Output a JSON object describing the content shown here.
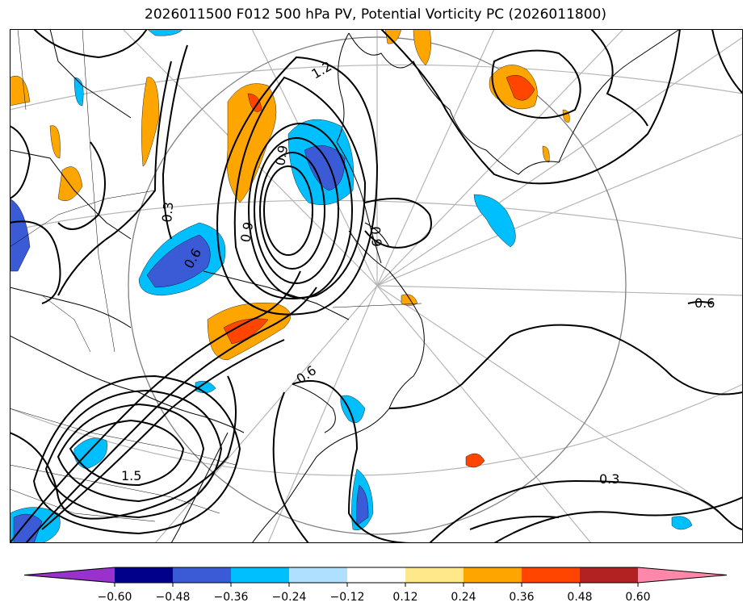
{
  "title": "2026011500 F012 500 hPa PV, Potential Vorticity PC (2026011800)",
  "colorbar": {
    "ticks": [
      "−0.60",
      "−0.48",
      "−0.36",
      "−0.24",
      "−0.12",
      "0.12",
      "0.24",
      "0.36",
      "0.48",
      "0.60"
    ],
    "colors": [
      "#9932cc",
      "#00008b",
      "#3b5bd6",
      "#00bfff",
      "#b0e0ff",
      "#ffffff",
      "#ffe88a",
      "#ffa500",
      "#ff4500",
      "#b22222",
      "#ff88aa"
    ]
  },
  "contour_labels": [
    "1.2",
    "0.9",
    "0.3",
    "0.6",
    "0.9",
    "0.9",
    "0.6",
    "0.6",
    "1.5",
    "0.3"
  ]
}
